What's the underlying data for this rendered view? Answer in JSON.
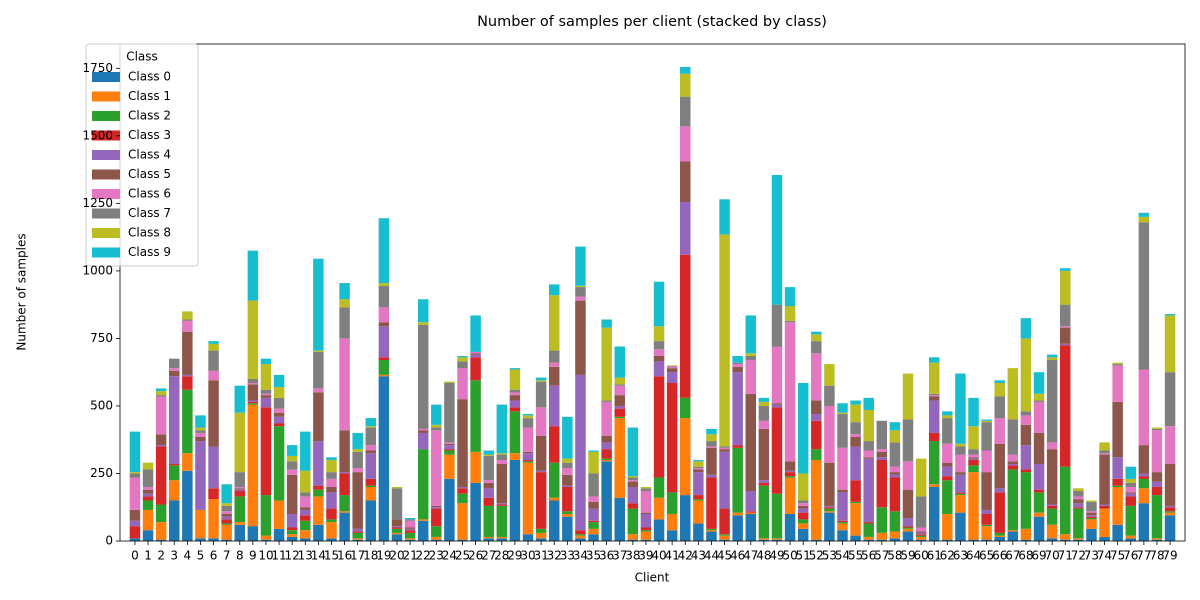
{
  "chart_data": {
    "type": "stacked_bar",
    "title": "Number of samples per client (stacked by class)",
    "x_label": "Client",
    "y_label": "Number of samples",
    "legend_title": "Class",
    "legend_position": "upper left",
    "categories": [
      "0",
      "1",
      "2",
      "3",
      "4",
      "5",
      "6",
      "7",
      "8",
      "9",
      "10",
      "11",
      "12",
      "13",
      "14",
      "15",
      "16",
      "17",
      "18",
      "19",
      "20",
      "21",
      "22",
      "23",
      "24",
      "25",
      "26",
      "27",
      "28",
      "29",
      "30",
      "31",
      "32",
      "33",
      "34",
      "35",
      "36",
      "37",
      "38",
      "39",
      "40",
      "41",
      "42",
      "43",
      "44",
      "45",
      "46",
      "47",
      "48",
      "49",
      "50",
      "51",
      "52",
      "53",
      "54",
      "55",
      "56",
      "57",
      "58",
      "59",
      "60",
      "61",
      "62",
      "63",
      "64",
      "65",
      "66",
      "67",
      "68",
      "69",
      "70",
      "71",
      "72",
      "73",
      "74",
      "75",
      "76",
      "77",
      "78",
      "79"
    ],
    "ylim": [
      0,
      1840
    ],
    "yticks": [
      0,
      250,
      500,
      750,
      1000,
      1250,
      1500,
      1750
    ],
    "series": [
      {
        "name": "Class 0",
        "color": "#1f77b4",
        "values": [
          10,
          40,
          5,
          150,
          260,
          10,
          10,
          5,
          60,
          55,
          5,
          45,
          15,
          10,
          60,
          10,
          105,
          5,
          150,
          610,
          25,
          5,
          75,
          5,
          230,
          5,
          215,
          10,
          10,
          300,
          25,
          10,
          150,
          90,
          10,
          25,
          295,
          160,
          5,
          5,
          80,
          40,
          170,
          65,
          35,
          5,
          95,
          100,
          5,
          5,
          100,
          45,
          5,
          105,
          40,
          20,
          5,
          5,
          10,
          35,
          5,
          200,
          5,
          105,
          5,
          5,
          15,
          35,
          5,
          90,
          10,
          5,
          5,
          45,
          15,
          60,
          10,
          140,
          5,
          95
        ]
      },
      {
        "name": "Class 1",
        "color": "#ff7f0e",
        "values": [
          0,
          75,
          65,
          75,
          65,
          105,
          145,
          55,
          10,
          450,
          15,
          105,
          10,
          30,
          105,
          60,
          5,
          5,
          50,
          5,
          5,
          5,
          5,
          10,
          90,
          135,
          115,
          5,
          5,
          25,
          265,
          20,
          10,
          10,
          10,
          20,
          5,
          295,
          20,
          30,
          80,
          60,
          285,
          85,
          5,
          15,
          10,
          5,
          5,
          5,
          135,
          20,
          295,
          5,
          25,
          120,
          10,
          25,
          25,
          10,
          10,
          10,
          95,
          65,
          250,
          50,
          5,
          5,
          40,
          15,
          50,
          20,
          5,
          35,
          105,
          140,
          10,
          55,
          5,
          10
        ]
      },
      {
        "name": "Class 2",
        "color": "#2ca02c",
        "values": [
          0,
          35,
          65,
          55,
          235,
          0,
          0,
          5,
          95,
          5,
          150,
          275,
          15,
          35,
          25,
          10,
          60,
          20,
          5,
          55,
          15,
          20,
          260,
          40,
          15,
          35,
          265,
          115,
          115,
          155,
          5,
          15,
          130,
          10,
          5,
          25,
          5,
          5,
          95,
          5,
          75,
          80,
          75,
          5,
          5,
          5,
          240,
          0,
          195,
          165,
          5,
          15,
          40,
          10,
          5,
          5,
          50,
          95,
          75,
          5,
          5,
          160,
          125,
          5,
          25,
          5,
          10,
          225,
          210,
          75,
          60,
          250,
          110,
          5,
          0,
          5,
          110,
          35,
          160,
          5
        ]
      },
      {
        "name": "Class 3",
        "color": "#d62728",
        "values": [
          45,
          15,
          215,
          5,
          50,
          0,
          40,
          15,
          20,
          5,
          325,
          10,
          10,
          20,
          15,
          40,
          80,
          5,
          25,
          10,
          5,
          10,
          0,
          65,
          5,
          20,
          85,
          30,
          5,
          15,
          5,
          210,
          135,
          90,
          15,
          5,
          35,
          30,
          20,
          10,
          375,
          405,
          530,
          15,
          190,
          95,
          10,
          5,
          10,
          320,
          15,
          25,
          105,
          5,
          5,
          80,
          5,
          175,
          125,
          5,
          5,
          30,
          15,
          5,
          20,
          40,
          150,
          15,
          10,
          10,
          10,
          450,
          5,
          5,
          10,
          25,
          35,
          10,
          30,
          15
        ]
      },
      {
        "name": "Class 4",
        "color": "#9467bd",
        "values": [
          20,
          10,
          5,
          325,
          5,
          255,
          155,
          10,
          5,
          5,
          35,
          25,
          50,
          20,
          165,
          60,
          5,
          10,
          95,
          115,
          5,
          5,
          60,
          5,
          15,
          5,
          10,
          35,
          5,
          25,
          25,
          5,
          150,
          5,
          575,
          45,
          25,
          10,
          60,
          50,
          55,
          40,
          195,
          85,
          10,
          210,
          270,
          75,
          10,
          10,
          5,
          15,
          25,
          5,
          105,
          125,
          235,
          10,
          10,
          30,
          5,
          120,
          35,
          65,
          5,
          15,
          15,
          5,
          90,
          95,
          5,
          5,
          15,
          5,
          5,
          80,
          10,
          10,
          20,
          5
        ]
      },
      {
        "name": "Class 5",
        "color": "#8c564b",
        "values": [
          40,
          15,
          40,
          20,
          160,
          15,
          245,
          10,
          5,
          60,
          10,
          15,
          145,
          10,
          180,
          20,
          155,
          210,
          10,
          15,
          25,
          5,
          10,
          5,
          5,
          325,
          5,
          20,
          145,
          20,
          5,
          130,
          70,
          40,
          275,
          25,
          25,
          40,
          20,
          5,
          20,
          15,
          150,
          10,
          100,
          10,
          20,
          360,
          190,
          5,
          35,
          10,
          50,
          160,
          10,
          35,
          5,
          20,
          10,
          105,
          5,
          15,
          15,
          10,
          5,
          140,
          165,
          10,
          75,
          115,
          205,
          60,
          15,
          10,
          185,
          205,
          5,
          105,
          35,
          155
        ]
      },
      {
        "name": "Class 6",
        "color": "#e377c2",
        "values": [
          120,
          10,
          140,
          10,
          40,
          15,
          35,
          10,
          5,
          5,
          5,
          15,
          20,
          40,
          15,
          30,
          340,
          15,
          20,
          55,
          0,
          25,
          5,
          280,
          5,
          115,
          5,
          10,
          15,
          10,
          90,
          105,
          15,
          25,
          15,
          20,
          125,
          35,
          5,
          80,
          25,
          5,
          130,
          5,
          5,
          5,
          10,
          125,
          30,
          210,
          515,
          10,
          175,
          210,
          155,
          10,
          25,
          10,
          20,
          105,
          15,
          5,
          70,
          65,
          10,
          80,
          95,
          25,
          35,
          115,
          25,
          5,
          10,
          5,
          5,
          135,
          20,
          280,
          155,
          140
        ]
      },
      {
        "name": "Class 7",
        "color": "#7f7f7f",
        "values": [
          15,
          65,
          5,
          35,
          5,
          10,
          75,
          20,
          55,
          15,
          15,
          40,
          30,
          15,
          135,
          25,
          115,
          60,
          65,
          80,
          115,
          5,
          385,
          10,
          220,
          25,
          0,
          90,
          20,
          10,
          35,
          95,
          45,
          20,
          35,
          85,
          5,
          5,
          10,
          10,
          30,
          3,
          110,
          5,
          20,
          5,
          5,
          15,
          55,
          155,
          5,
          10,
          45,
          75,
          125,
          45,
          35,
          105,
          90,
          155,
          115,
          5,
          95,
          30,
          20,
          105,
          80,
          130,
          15,
          5,
          305,
          80,
          20,
          35,
          10,
          5,
          15,
          545,
          5,
          200
        ]
      },
      {
        "name": "Class 8",
        "color": "#bcbd22",
        "values": [
          5,
          25,
          15,
          0,
          30,
          10,
          25,
          10,
          220,
          290,
          95,
          40,
          20,
          80,
          5,
          45,
          30,
          10,
          5,
          10,
          5,
          0,
          10,
          10,
          5,
          15,
          0,
          5,
          5,
          75,
          10,
          5,
          205,
          15,
          5,
          80,
          270,
          25,
          5,
          5,
          55,
          2,
          85,
          20,
          25,
          785,
          0,
          10,
          15,
          0,
          55,
          100,
          25,
          80,
          5,
          65,
          115,
          0,
          45,
          170,
          140,
          115,
          10,
          10,
          85,
          5,
          50,
          190,
          270,
          25,
          10,
          125,
          10,
          5,
          30,
          5,
          15,
          20,
          5,
          210
        ]
      },
      {
        "name": "Class 9",
        "color": "#17becf",
        "values": [
          150,
          0,
          10,
          0,
          0,
          45,
          10,
          70,
          100,
          185,
          20,
          45,
          40,
          145,
          340,
          10,
          60,
          60,
          30,
          240,
          0,
          5,
          85,
          75,
          0,
          5,
          135,
          15,
          180,
          5,
          5,
          10,
          40,
          155,
          145,
          5,
          30,
          115,
          180,
          0,
          165,
          0,
          25,
          5,
          20,
          130,
          25,
          140,
          15,
          480,
          70,
          335,
          10,
          0,
          35,
          15,
          45,
          0,
          30,
          0,
          0,
          20,
          15,
          260,
          105,
          5,
          10,
          0,
          75,
          80,
          10,
          10,
          0,
          0,
          0,
          0,
          45,
          15,
          0,
          5
        ]
      }
    ]
  }
}
